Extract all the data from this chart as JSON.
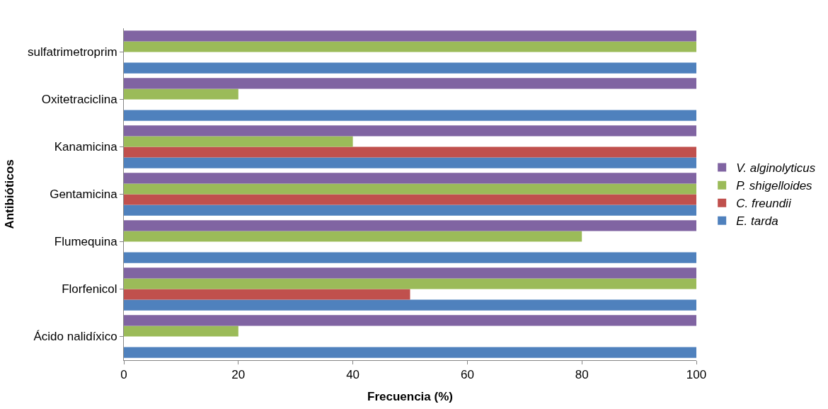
{
  "chart_data": {
    "type": "bar",
    "orientation": "horizontal",
    "xlabel": "Frecuencia (%)",
    "ylabel": "Antibióticos",
    "categories": [
      "sulfatrimetroprim",
      "Oxitetraciclina",
      "Kanamicina",
      "Gentamicina",
      "Flumequina",
      "Florfenicol",
      "Ácido nalidíxico"
    ],
    "series": [
      {
        "name": "V. alginolyticus",
        "color": "#8064a2",
        "values": [
          100,
          100,
          100,
          100,
          100,
          100,
          100
        ]
      },
      {
        "name": "P. shigelloides",
        "color": "#9bbb59",
        "values": [
          100,
          20,
          40,
          100,
          80,
          100,
          20
        ]
      },
      {
        "name": "C. freundii",
        "color": "#c0504d",
        "values": [
          0,
          0,
          100,
          100,
          0,
          50,
          0
        ]
      },
      {
        "name": "E. tarda",
        "color": "#4f81bd",
        "values": [
          100,
          100,
          100,
          100,
          100,
          100,
          100
        ]
      }
    ],
    "xlim": [
      0,
      100
    ],
    "xticks": [
      0,
      20,
      40,
      60,
      80,
      100
    ],
    "legend": "right"
  }
}
